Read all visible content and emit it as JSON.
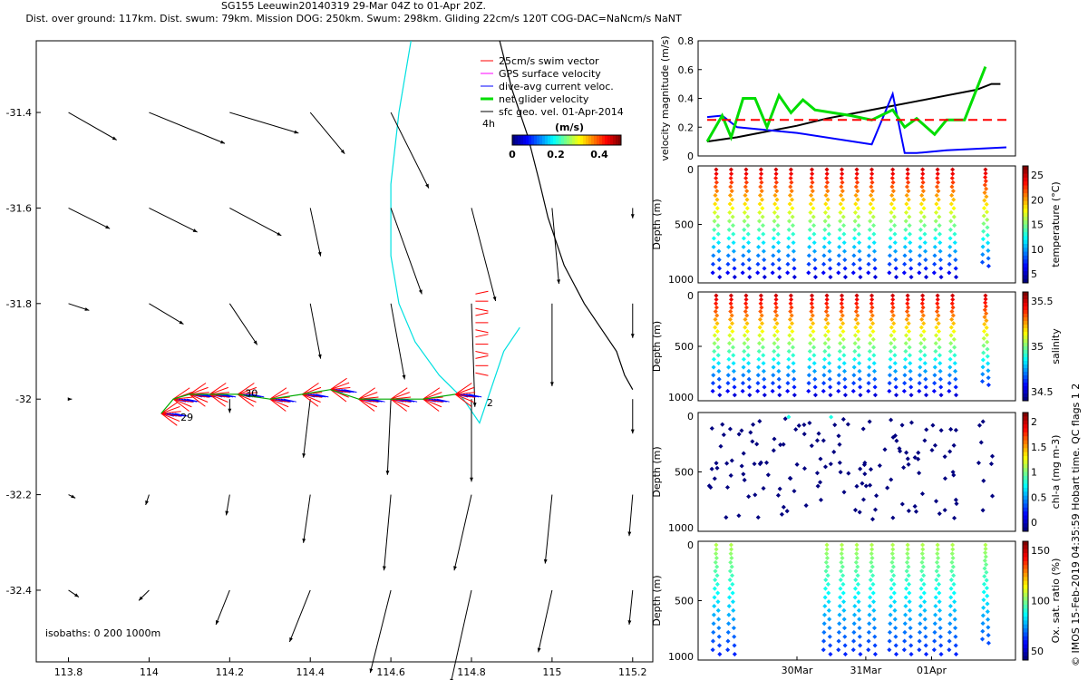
{
  "header": {
    "title_line1": "SG155 Leeuwin20140319 29-Mar 04Z to 01-Apr 20Z.",
    "title_line2": "Dist. over ground: 117km. Dist. swum: 79km. Mission DOG: 250km. Swum: 298km. Gliding 22cm/s 120T COG-DAC=NaNcm/s NaNT"
  },
  "side_caption": "© IMOS 15-Feb-2019 04:35:59 Hobart time. QC flags 1  2",
  "chart_data": [
    {
      "type": "map",
      "xticks": [
        "113.8",
        "114",
        "114.2",
        "114.4",
        "114.6",
        "114.8",
        "115",
        "115.2"
      ],
      "yticks": [
        "-31.4",
        "-31.6",
        "-31.8",
        "-32",
        "-32.2",
        "-32.4"
      ],
      "xlim": [
        113.72,
        115.25
      ],
      "ylim": [
        -32.55,
        -31.25
      ],
      "legend": {
        "items": [
          {
            "label": "25cm/s swim vector",
            "color": "#ff0000"
          },
          {
            "label": "GPS surface velocity",
            "color": "#ff00ff"
          },
          {
            "label": "dive-avg current veloc.",
            "color": "#0000ff"
          },
          {
            "label": "net glider velocity",
            "color": "#00dd00"
          },
          {
            "label": "sfc geo. vel. 01-Apr-2014",
            "color": "#000000"
          }
        ],
        "scale_label": "4h",
        "colorbar_unit": "(m/s)",
        "colorbar_ticks": [
          "0",
          "0.2",
          "0.4"
        ]
      },
      "isobaths_label": "isobaths: 0   200  1000m",
      "track_labels": [
        "29",
        "30",
        "2"
      ],
      "vectors": [
        {
          "lon": 113.8,
          "lat": -31.4,
          "u": 0.14,
          "v": -0.08
        },
        {
          "lon": 114.0,
          "lat": -31.4,
          "u": 0.22,
          "v": -0.09
        },
        {
          "lon": 114.2,
          "lat": -31.4,
          "u": 0.2,
          "v": -0.06
        },
        {
          "lon": 114.4,
          "lat": -31.4,
          "u": 0.1,
          "v": -0.12
        },
        {
          "lon": 114.6,
          "lat": -31.4,
          "u": 0.11,
          "v": -0.22
        },
        {
          "lon": 113.8,
          "lat": -31.6,
          "u": 0.12,
          "v": -0.06
        },
        {
          "lon": 114.0,
          "lat": -31.6,
          "u": 0.14,
          "v": -0.07
        },
        {
          "lon": 114.2,
          "lat": -31.6,
          "u": 0.15,
          "v": -0.08
        },
        {
          "lon": 114.4,
          "lat": -31.6,
          "u": 0.03,
          "v": -0.14
        },
        {
          "lon": 114.6,
          "lat": -31.6,
          "u": 0.09,
          "v": -0.25
        },
        {
          "lon": 114.8,
          "lat": -31.6,
          "u": 0.07,
          "v": -0.27
        },
        {
          "lon": 115.0,
          "lat": -31.6,
          "u": 0.02,
          "v": -0.22
        },
        {
          "lon": 115.2,
          "lat": -31.6,
          "u": 0.0,
          "v": -0.03
        },
        {
          "lon": 113.8,
          "lat": -31.8,
          "u": 0.06,
          "v": -0.02
        },
        {
          "lon": 114.0,
          "lat": -31.8,
          "u": 0.1,
          "v": -0.06
        },
        {
          "lon": 114.2,
          "lat": -31.8,
          "u": 0.08,
          "v": -0.12
        },
        {
          "lon": 114.4,
          "lat": -31.8,
          "u": 0.03,
          "v": -0.16
        },
        {
          "lon": 114.6,
          "lat": -31.8,
          "u": 0.04,
          "v": -0.22
        },
        {
          "lon": 114.8,
          "lat": -31.8,
          "u": 0.01,
          "v": -0.3
        },
        {
          "lon": 115.0,
          "lat": -31.8,
          "u": 0.0,
          "v": -0.24
        },
        {
          "lon": 115.2,
          "lat": -31.8,
          "u": 0.0,
          "v": -0.1
        },
        {
          "lon": 113.8,
          "lat": -32.0,
          "u": 0.01,
          "v": 0.0
        },
        {
          "lon": 114.2,
          "lat": -32.0,
          "u": 0.0,
          "v": -0.04
        },
        {
          "lon": 114.4,
          "lat": -32.0,
          "u": -0.02,
          "v": -0.17
        },
        {
          "lon": 114.6,
          "lat": -32.0,
          "u": -0.01,
          "v": -0.22
        },
        {
          "lon": 114.8,
          "lat": -32.0,
          "u": 0.0,
          "v": -0.24
        },
        {
          "lon": 115.2,
          "lat": -32.0,
          "u": 0.0,
          "v": -0.1
        },
        {
          "lon": 113.8,
          "lat": -32.2,
          "u": 0.02,
          "v": -0.01
        },
        {
          "lon": 114.0,
          "lat": -32.2,
          "u": -0.01,
          "v": -0.03
        },
        {
          "lon": 114.2,
          "lat": -32.2,
          "u": -0.01,
          "v": -0.06
        },
        {
          "lon": 114.4,
          "lat": -32.2,
          "u": -0.02,
          "v": -0.14
        },
        {
          "lon": 114.6,
          "lat": -32.2,
          "u": -0.02,
          "v": -0.22
        },
        {
          "lon": 114.8,
          "lat": -32.2,
          "u": -0.05,
          "v": -0.22
        },
        {
          "lon": 115.0,
          "lat": -32.2,
          "u": -0.02,
          "v": -0.2
        },
        {
          "lon": 115.2,
          "lat": -32.2,
          "u": -0.01,
          "v": -0.12
        },
        {
          "lon": 113.8,
          "lat": -32.4,
          "u": 0.03,
          "v": -0.02
        },
        {
          "lon": 114.0,
          "lat": -32.4,
          "u": -0.03,
          "v": -0.03
        },
        {
          "lon": 114.2,
          "lat": -32.4,
          "u": -0.04,
          "v": -0.1
        },
        {
          "lon": 114.4,
          "lat": -32.4,
          "u": -0.06,
          "v": -0.15
        },
        {
          "lon": 114.6,
          "lat": -32.4,
          "u": -0.06,
          "v": -0.24
        },
        {
          "lon": 114.8,
          "lat": -32.4,
          "u": -0.06,
          "v": -0.27
        },
        {
          "lon": 115.0,
          "lat": -32.4,
          "u": -0.04,
          "v": -0.18
        },
        {
          "lon": 115.2,
          "lat": -32.4,
          "u": -0.01,
          "v": -0.1
        }
      ],
      "glider_track": {
        "lon": [
          114.03,
          114.06,
          114.1,
          114.15,
          114.22,
          114.3,
          114.38,
          114.45,
          114.52,
          114.6,
          114.68,
          114.76
        ],
        "lat": [
          -32.03,
          -32.0,
          -31.99,
          -31.99,
          -31.99,
          -32.0,
          -31.99,
          -31.98,
          -32.0,
          -32.0,
          -32.0,
          -31.99
        ]
      },
      "isobath_0": {
        "lon": [
          114.87,
          114.9,
          114.94,
          114.97,
          114.99,
          115.03,
          115.08,
          115.12,
          115.16,
          115.18,
          115.2
        ],
        "lat": [
          -31.25,
          -31.35,
          -31.45,
          -31.55,
          -31.62,
          -31.72,
          -31.8,
          -31.85,
          -31.9,
          -31.95,
          -31.98
        ]
      },
      "isobath_1000": {
        "lon": [
          114.65,
          114.62,
          114.6,
          114.6,
          114.62,
          114.66,
          114.72,
          114.78,
          114.82,
          114.84,
          114.88,
          114.92
        ],
        "lat": [
          -31.25,
          -31.4,
          -31.55,
          -31.7,
          -31.8,
          -31.88,
          -31.95,
          -32.0,
          -32.05,
          -32.0,
          -31.9,
          -31.85
        ]
      }
    },
    {
      "type": "line",
      "ylabel": "velocity magnitude (m/s)",
      "yticks": [
        "0",
        "0.2",
        "0.4",
        "0.6",
        "0.8"
      ],
      "ylim": [
        0,
        0.8
      ],
      "xlim": [
        0,
        1
      ],
      "series": [
        {
          "color": "#000000",
          "x": [
            0,
            0.1,
            0.2,
            0.3,
            0.4,
            0.5,
            0.6,
            0.7,
            0.8,
            0.9,
            0.95,
            0.98
          ],
          "y": [
            0.1,
            0.13,
            0.17,
            0.21,
            0.26,
            0.3,
            0.34,
            0.38,
            0.42,
            0.46,
            0.5,
            0.5
          ]
        },
        {
          "color": "#0000ff",
          "x": [
            0,
            0.05,
            0.1,
            0.3,
            0.55,
            0.62,
            0.66,
            0.7,
            0.8,
            1.0
          ],
          "y": [
            0.27,
            0.28,
            0.2,
            0.16,
            0.08,
            0.43,
            0.02,
            0.02,
            0.04,
            0.06
          ]
        },
        {
          "color": "#00dd00",
          "x": [
            0,
            0.05,
            0.08,
            0.12,
            0.16,
            0.2,
            0.24,
            0.28,
            0.32,
            0.36,
            0.42,
            0.48,
            0.55,
            0.62,
            0.66,
            0.7,
            0.76,
            0.8,
            0.86,
            0.93
          ],
          "y": [
            0.1,
            0.28,
            0.13,
            0.4,
            0.4,
            0.2,
            0.42,
            0.3,
            0.39,
            0.32,
            0.3,
            0.28,
            0.25,
            0.32,
            0.2,
            0.26,
            0.15,
            0.25,
            0.25,
            0.62
          ]
        },
        {
          "color": "#ff0000",
          "dashed": true,
          "x": [
            0,
            1
          ],
          "y": [
            0.25,
            0.25
          ]
        }
      ]
    },
    {
      "type": "scatter",
      "ylabel": "Depth (m)",
      "yticks": [
        "0",
        "500",
        "1000"
      ],
      "ylim": [
        1000,
        0
      ],
      "cbar_label": "temperature (°C)",
      "cbar_ticks": [
        "5",
        "10",
        "15",
        "20",
        "25"
      ],
      "pattern": "full"
    },
    {
      "type": "scatter",
      "ylabel": "Depth (m)",
      "yticks": [
        "0",
        "500",
        "1000"
      ],
      "ylim": [
        1000,
        0
      ],
      "cbar_label": "salinity",
      "cbar_ticks": [
        "34.5",
        "35",
        "35.5"
      ],
      "pattern": "full"
    },
    {
      "type": "scatter",
      "ylabel": "Depth (m)",
      "yticks": [
        "0",
        "500",
        "1000"
      ],
      "ylim": [
        1000,
        0
      ],
      "cbar_label": "chl-a (mg m-3)",
      "cbar_ticks": [
        "0",
        "0.5",
        "1",
        "1.5",
        "2"
      ],
      "pattern": "sparse"
    },
    {
      "type": "scatter",
      "ylabel": "Depth (m)",
      "yticks": [
        "0",
        "500",
        "1000"
      ],
      "ylim": [
        1000,
        0
      ],
      "cbar_label": "Ox. sat. ratio (%)",
      "cbar_ticks": [
        "50",
        "100",
        "150"
      ],
      "pattern": "oxygen",
      "xticks": [
        "30Mar",
        "31Mar",
        "01Apr"
      ]
    }
  ]
}
